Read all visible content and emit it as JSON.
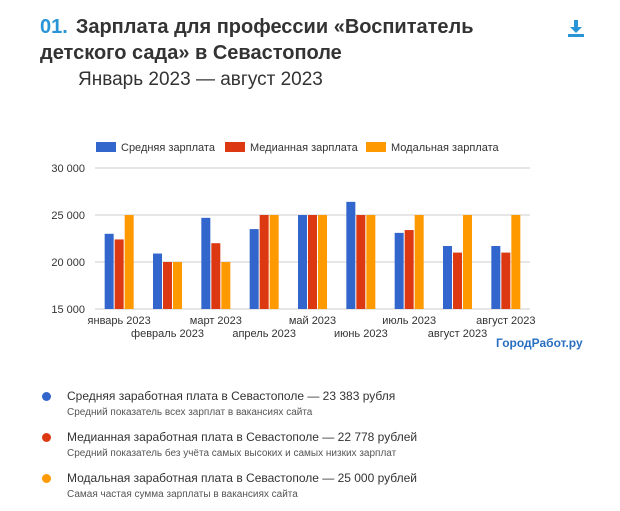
{
  "header": {
    "number": "01.",
    "title_line1": "Зарплата для профессии «Воспитатель",
    "title_line2": "детского сада» в Севастополе",
    "period": "Январь 2023 — август 2023"
  },
  "download_icon": "download-icon",
  "watermark": "ГородРабот.ру",
  "chart_data": {
    "type": "bar",
    "categories": [
      "январь 2023",
      "февраль 2023",
      "март 2023",
      "апрель 2023",
      "май 2023",
      "июнь 2023",
      "июль 2023",
      "август 2023",
      "август 2023"
    ],
    "series": [
      {
        "name": "Средняя зарплата",
        "color": "#3366cc",
        "values": [
          23000,
          20900,
          24700,
          23500,
          25000,
          26400,
          23100,
          21700,
          21700
        ]
      },
      {
        "name": "Медианная зарплата",
        "color": "#dc3912",
        "values": [
          22400,
          20000,
          22000,
          25000,
          25000,
          25000,
          23400,
          21000,
          21000
        ]
      },
      {
        "name": "Модальная зарплата",
        "color": "#ff9900",
        "values": [
          25000,
          20000,
          20000,
          25000,
          25000,
          25000,
          25000,
          25000,
          25000
        ]
      }
    ],
    "y_ticks": [
      "15 000",
      "20 000",
      "25 000",
      "30 000"
    ],
    "ylim": [
      15000,
      30000
    ],
    "grid": true,
    "legend_position": "top"
  },
  "stats": [
    {
      "color": "#3366cc",
      "main": "Средняя заработная плата в Севастополе — 23 383 рубля",
      "sub": "Средний показатель всех зарплат в вакансиях сайта"
    },
    {
      "color": "#dc3912",
      "main": "Медианная заработная плата в Севастополе — 22 778 рублей",
      "sub": "Средний показатель без учёта самых высоких и самых низких зарплат"
    },
    {
      "color": "#ff9900",
      "main": "Модальная заработная плата в Севастополе — 25 000 рублей",
      "sub": "Самая частая сумма зарплаты в вакансиях сайта"
    }
  ]
}
